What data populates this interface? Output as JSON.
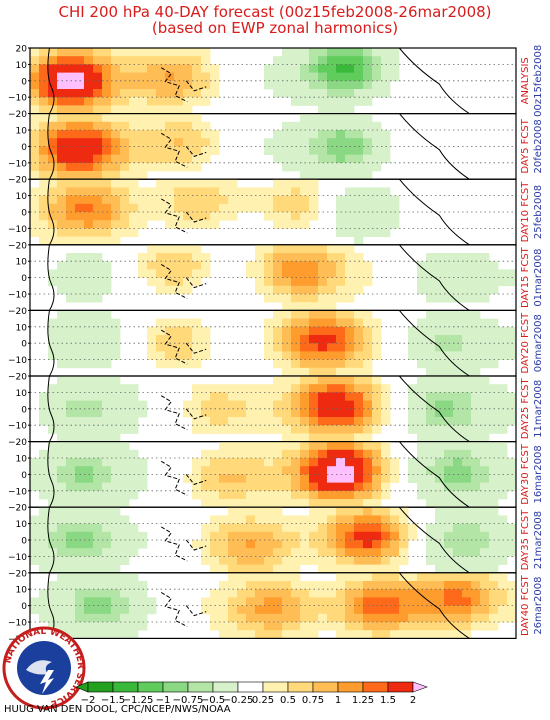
{
  "title": {
    "line1": "CHI 200 hPa 40-DAY forecast (00z15feb2008-26mar2008)",
    "line2": "(based on EWP zonal harmonics)"
  },
  "credit": "HUUG VAN DEN DOOL, CPC/NCEP/NWS/NOAA",
  "logo": {
    "text": "NATIONAL WEATHER SERVICE"
  },
  "y_ticks": [
    "20",
    "10",
    "0",
    "−10",
    "−20"
  ],
  "colorbar": {
    "labels": [
      "−2",
      "−1.5",
      "−1.25",
      "−1",
      "−0.75",
      "−0.5",
      "−0.25",
      "0.25",
      "0.5",
      "0.75",
      "1",
      "1.25",
      "1.5",
      "2"
    ],
    "colors": [
      "#22a01e",
      "#3ab83a",
      "#5fcc5c",
      "#8ad884",
      "#b3e6a6",
      "#d7f2cb",
      "#ffffff",
      "#fff2b0",
      "#ffd97a",
      "#ffbe55",
      "#ff9c2e",
      "#ff6a1a",
      "#ee2a10",
      "#ffc0ff"
    ]
  },
  "chart_data": {
    "type": "heatmap",
    "title": "CHI 200 hPa 40-DAY forecast (00z15feb2008-26mar2008)",
    "subtitle": "(based on EWP zonal harmonics)",
    "ylim": [
      -20,
      20
    ],
    "grid": "dotted latitude lines",
    "panels": [
      {
        "label": "ANALYSIS",
        "date": "00z15feb2008",
        "centers": [
          [
            0.08,
            0.5,
            2.0
          ],
          [
            0.3,
            0.45,
            0.9
          ],
          [
            0.65,
            0.3,
            -1.5
          ]
        ]
      },
      {
        "label": "DAY5 FCST",
        "date": "20feb2008",
        "centers": [
          [
            0.1,
            0.55,
            1.7
          ],
          [
            0.32,
            0.45,
            0.8
          ],
          [
            0.65,
            0.5,
            -1.2
          ]
        ]
      },
      {
        "label": "DAY10 FCST",
        "date": "25feb2008",
        "centers": [
          [
            0.12,
            0.45,
            1.1
          ],
          [
            0.35,
            0.35,
            0.9
          ],
          [
            0.55,
            0.4,
            0.8
          ],
          [
            0.68,
            0.5,
            -1.0
          ]
        ]
      },
      {
        "label": "DAY15 FCST",
        "date": "01mar2008",
        "centers": [
          [
            0.3,
            0.35,
            0.9
          ],
          [
            0.55,
            0.4,
            1.2
          ],
          [
            0.1,
            0.5,
            -0.7
          ],
          [
            0.85,
            0.5,
            -0.7
          ]
        ]
      },
      {
        "label": "DAY20 FCST",
        "date": "06mar2008",
        "centers": [
          [
            0.3,
            0.5,
            0.9
          ],
          [
            0.6,
            0.45,
            1.4
          ],
          [
            0.1,
            0.45,
            -0.8
          ],
          [
            0.85,
            0.5,
            -0.8
          ]
        ]
      },
      {
        "label": "DAY25 FCST",
        "date": "11mar2008",
        "centers": [
          [
            0.38,
            0.5,
            0.7
          ],
          [
            0.63,
            0.45,
            1.6
          ],
          [
            0.1,
            0.5,
            -0.8
          ],
          [
            0.85,
            0.5,
            -0.9
          ]
        ]
      },
      {
        "label": "DAY30 FCST",
        "date": "16mar2008",
        "centers": [
          [
            0.4,
            0.55,
            0.7
          ],
          [
            0.64,
            0.45,
            2.1
          ],
          [
            0.1,
            0.5,
            -0.9
          ],
          [
            0.88,
            0.45,
            -0.9
          ]
        ]
      },
      {
        "label": "DAY35 FCST",
        "date": "21mar2008",
        "centers": [
          [
            0.45,
            0.6,
            0.8
          ],
          [
            0.7,
            0.45,
            1.7
          ],
          [
            0.1,
            0.5,
            -0.9
          ],
          [
            0.9,
            0.5,
            -0.8
          ]
        ]
      },
      {
        "label": "DAY40 FCST",
        "date": "26mar2008",
        "centers": [
          [
            0.5,
            0.55,
            0.9
          ],
          [
            0.72,
            0.5,
            1.6
          ],
          [
            0.88,
            0.4,
            1.4
          ],
          [
            0.15,
            0.5,
            -0.9
          ]
        ]
      }
    ],
    "colorscale": [
      -2,
      -1.5,
      -1.25,
      -1,
      -0.75,
      -0.5,
      -0.25,
      0.25,
      0.5,
      0.75,
      1,
      1.25,
      1.5,
      2
    ]
  }
}
